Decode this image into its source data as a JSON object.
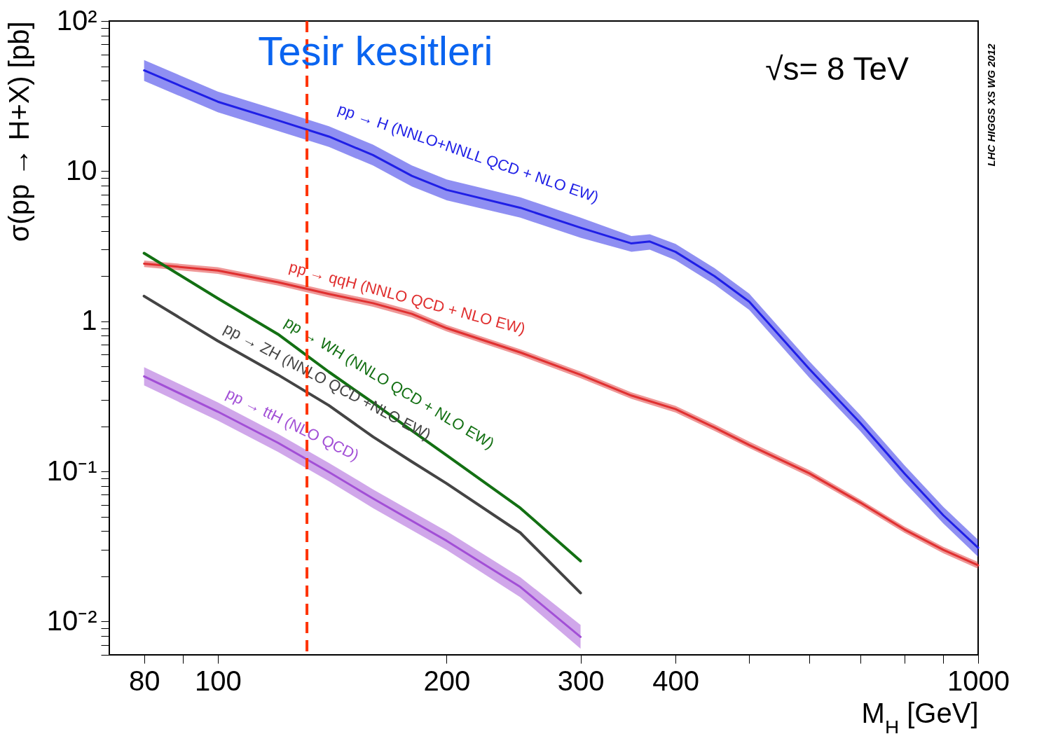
{
  "chart_data": {
    "type": "line",
    "title": "Tesir kesitleri",
    "xlabel": "M$_{H}$ [GeV]",
    "ylabel": "σ(pp → H+X) [pb]",
    "log": "xy",
    "xlim": [
      72,
      1000
    ],
    "xticks": [
      80,
      {
        "value": 90,
        "label": null
      },
      100,
      200,
      300,
      400,
      {
        "value": 500,
        "label": null
      },
      {
        "value": 600,
        "label": null
      },
      {
        "value": 700,
        "label": null
      },
      {
        "value": 800,
        "label": null
      },
      {
        "value": 900,
        "label": null
      },
      1000
    ],
    "ylim": [
      0.006,
      100
    ],
    "yticks": [
      {
        "value": 0.006,
        "label": null
      },
      {
        "value": 0.007,
        "label": null
      },
      {
        "value": 0.008,
        "label": null
      },
      {
        "value": 0.009,
        "label": null
      },
      {
        "value": 0.01,
        "label": "10⁻²"
      },
      {
        "value": 0.02,
        "label": null
      },
      {
        "value": 0.03,
        "label": null
      },
      {
        "value": 0.04,
        "label": null
      },
      {
        "value": 0.05,
        "label": null
      },
      {
        "value": 0.06,
        "label": null
      },
      {
        "value": 0.07,
        "label": null
      },
      {
        "value": 0.08,
        "label": null
      },
      {
        "value": 0.09,
        "label": null
      },
      {
        "value": 0.1,
        "label": "10⁻¹"
      },
      {
        "value": 0.2,
        "label": null
      },
      {
        "value": 0.3,
        "label": null
      },
      {
        "value": 0.4,
        "label": null
      },
      {
        "value": 0.5,
        "label": null
      },
      {
        "value": 0.6,
        "label": null
      },
      {
        "value": 0.7,
        "label": null
      },
      {
        "value": 0.8,
        "label": null
      },
      {
        "value": 0.9,
        "label": null
      },
      1,
      {
        "value": 2,
        "label": null
      },
      {
        "value": 3,
        "label": null
      },
      {
        "value": 4,
        "label": null
      },
      {
        "value": 5,
        "label": null
      },
      {
        "value": 6,
        "label": null
      },
      {
        "value": 7,
        "label": null
      },
      {
        "value": 8,
        "label": null
      },
      {
        "value": 9,
        "label": null
      },
      10,
      {
        "value": 20,
        "label": null
      },
      {
        "value": 30,
        "label": null
      },
      {
        "value": 40,
        "label": null
      },
      {
        "value": 50,
        "label": null
      },
      {
        "value": 60,
        "label": null
      },
      {
        "value": 70,
        "label": null
      },
      {
        "value": 80,
        "label": null
      },
      {
        "value": 90,
        "label": null
      },
      {
        "value": 100,
        "label": "10²"
      }
    ],
    "series": [
      {
        "name": "pp → H (NNLO+NNLL QCD + NLO EW)",
        "color": "#1f1fe6",
        "x": [
          80,
          100,
          120,
          140,
          160,
          180,
          200,
          250,
          300,
          350,
          370,
          400,
          450,
          500,
          600,
          700,
          800,
          900,
          1000
        ],
        "values": [
          46.9,
          29,
          21.8,
          17,
          12.8,
          9.3,
          7.5,
          5.7,
          4.2,
          3.3,
          3.4,
          2.9,
          2.0,
          1.35,
          0.48,
          0.21,
          0.097,
          0.051,
          0.031
        ],
        "lower": [
          39.9,
          24.7,
          18.5,
          14.5,
          10.9,
          7.9,
          6.4,
          4.9,
          3.6,
          2.9,
          3.0,
          2.55,
          1.76,
          1.19,
          0.42,
          0.185,
          0.085,
          0.045,
          0.027
        ],
        "upper": [
          54.9,
          33.9,
          25.5,
          19.9,
          15,
          10.9,
          8.8,
          6.7,
          4.9,
          3.7,
          3.8,
          3.28,
          2.26,
          1.53,
          0.54,
          0.237,
          0.11,
          0.058,
          0.035
        ]
      },
      {
        "name": "pp → qqH (NNLO QCD + NLO EW)",
        "color": "#e03030",
        "x": [
          80,
          100,
          120,
          140,
          160,
          180,
          200,
          250,
          300,
          350,
          400,
          450,
          500,
          600,
          700,
          800,
          900,
          1000
        ],
        "values": [
          2.42,
          2.18,
          1.82,
          1.52,
          1.32,
          1.12,
          0.9,
          0.62,
          0.44,
          0.32,
          0.26,
          0.196,
          0.15,
          0.097,
          0.062,
          0.041,
          0.03,
          0.0237
        ],
        "lower": [
          2.3,
          2.07,
          1.73,
          1.44,
          1.25,
          1.06,
          0.855,
          0.589,
          0.418,
          0.304,
          0.247,
          0.186,
          0.143,
          0.092,
          0.059,
          0.039,
          0.0285,
          0.0225
        ],
        "upper": [
          2.54,
          2.29,
          1.91,
          1.6,
          1.39,
          1.18,
          0.945,
          0.651,
          0.462,
          0.336,
          0.273,
          0.206,
          0.158,
          0.102,
          0.065,
          0.043,
          0.0315,
          0.0249
        ]
      },
      {
        "name": "pp → WH (NNLO QCD + NLO EW)",
        "color": "#137013",
        "x": [
          80,
          100,
          120,
          140,
          160,
          180,
          200,
          250,
          300
        ],
        "values": [
          2.84,
          1.42,
          0.82,
          0.46,
          0.287,
          0.187,
          0.128,
          0.057,
          0.0253
        ]
      },
      {
        "name": "pp → ZH (NNLO QCD +NLO EW)",
        "color": "#444444",
        "x": [
          80,
          100,
          120,
          140,
          160,
          180,
          200,
          250,
          300
        ],
        "values": [
          1.47,
          0.74,
          0.44,
          0.275,
          0.17,
          0.116,
          0.083,
          0.039,
          0.0155
        ]
      },
      {
        "name": "pp → ttH (NLO QCD)",
        "color": "#a24fd6",
        "x": [
          80,
          100,
          120,
          140,
          160,
          200,
          250,
          300
        ],
        "values": [
          0.43,
          0.25,
          0.155,
          0.099,
          0.066,
          0.0345,
          0.017,
          0.0079
        ],
        "lower": [
          0.374,
          0.218,
          0.135,
          0.086,
          0.057,
          0.03,
          0.0145,
          0.0066
        ],
        "upper": [
          0.495,
          0.288,
          0.178,
          0.114,
          0.076,
          0.04,
          0.0197,
          0.0095
        ]
      }
    ],
    "ref_lines": [
      {
        "axis": "x",
        "value": 131,
        "color": "#ff3300",
        "line_style": "dashed"
      }
    ],
    "annotations": [
      "√s= 8 TeV",
      "LHC HIGGS XS WG 2012"
    ]
  }
}
